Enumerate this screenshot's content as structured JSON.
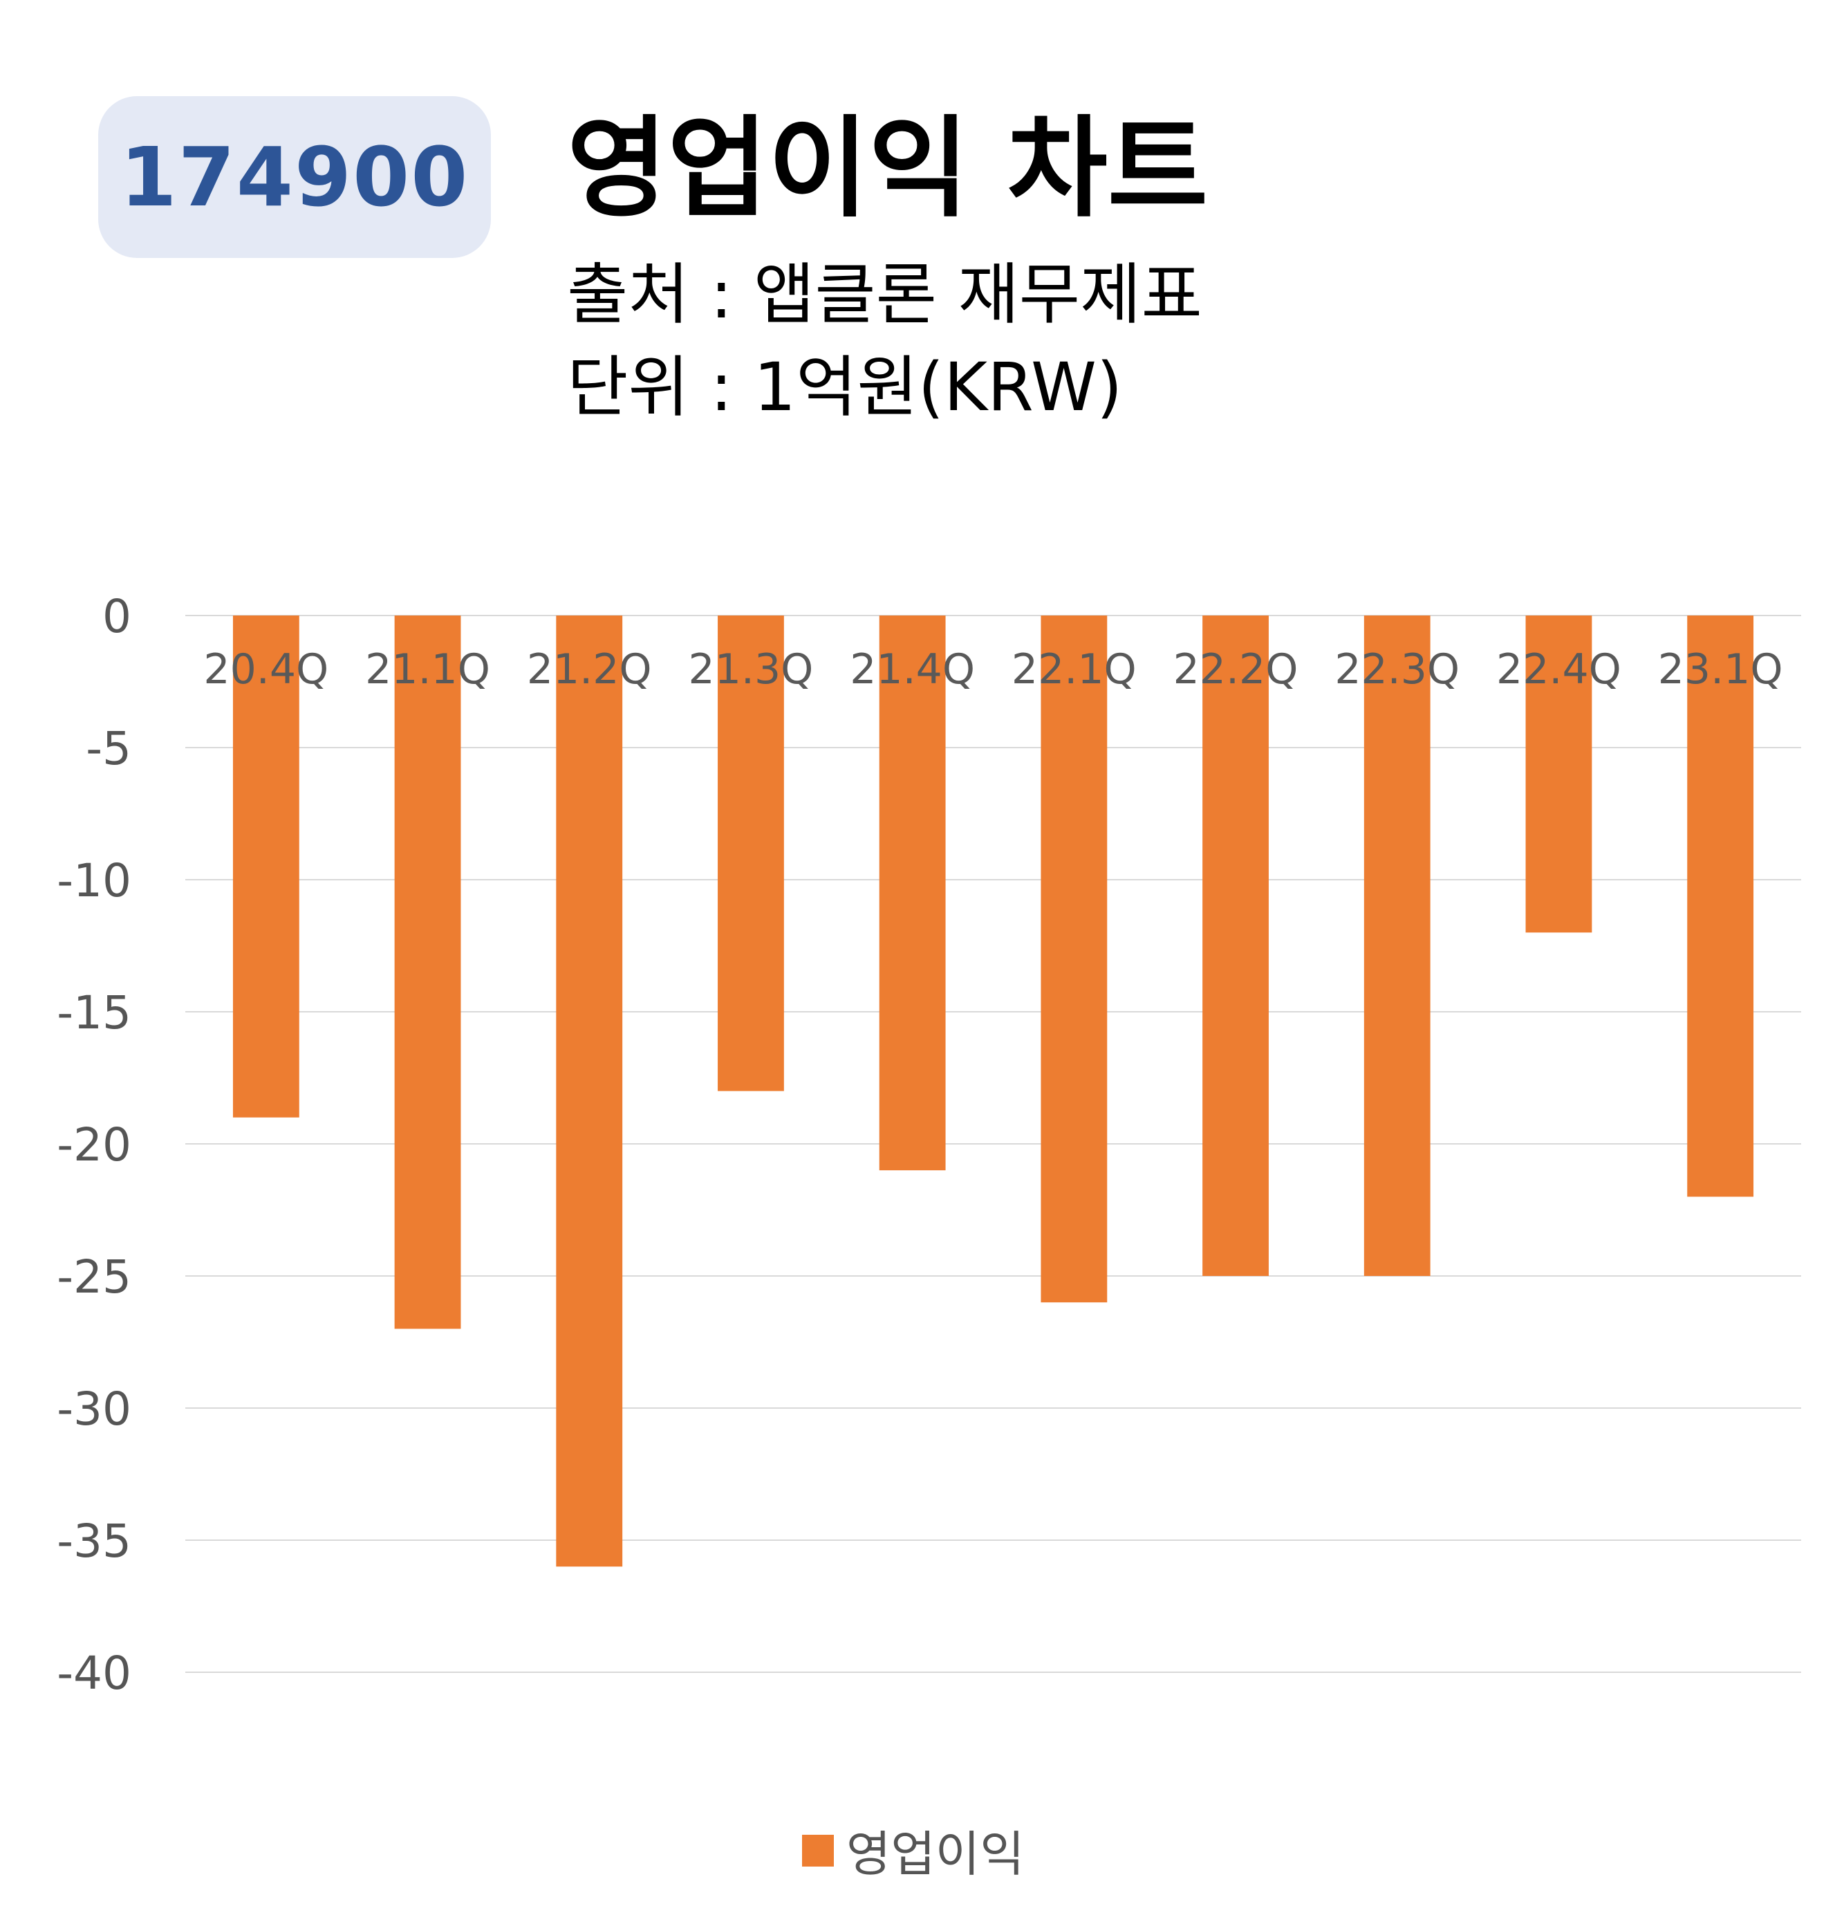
{
  "header": {
    "code": "174900",
    "title": "영업이익 차트",
    "source": "출처 : 앱클론 재무제표",
    "unit": "단위 : 1억원(KRW)"
  },
  "chart_data": {
    "type": "bar",
    "categories": [
      "20.4Q",
      "21.1Q",
      "21.2Q",
      "21.3Q",
      "21.4Q",
      "22.1Q",
      "22.2Q",
      "22.3Q",
      "22.4Q",
      "23.1Q"
    ],
    "series": [
      {
        "name": "영업이익",
        "values": [
          -19,
          -27,
          -36,
          -18,
          -21,
          -26,
          -25,
          -25,
          -12,
          -22
        ],
        "color": "#ed7d31"
      }
    ],
    "yticks": [
      0,
      -5,
      -10,
      -15,
      -20,
      -25,
      -30,
      -35,
      -40
    ],
    "ylim": [
      -40,
      0
    ],
    "grid": true,
    "legend": "bottom"
  }
}
